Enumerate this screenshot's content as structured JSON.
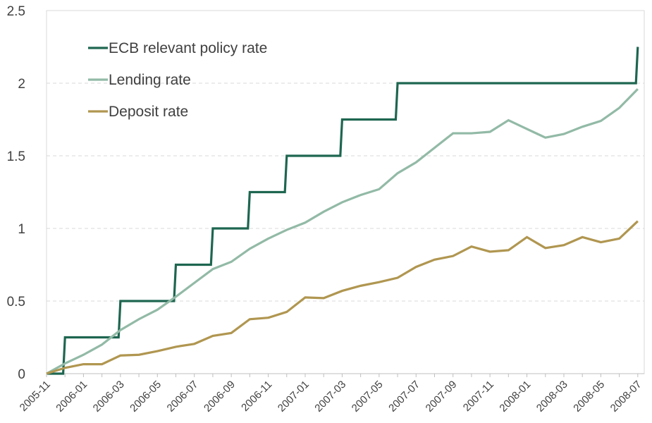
{
  "chart_data": {
    "type": "line",
    "title": "",
    "xlabel": "",
    "ylabel": "",
    "ylim": [
      0,
      2.5
    ],
    "yticks": [
      "0",
      "0.5",
      "1",
      "1.5",
      "2",
      "2.5"
    ],
    "ytick_values": [
      0,
      0.5,
      1,
      1.5,
      2,
      2.5
    ],
    "grid": "horizontal dashed",
    "legend_position": "top-left",
    "x": [
      "2005-11",
      "2005-12",
      "2006-01",
      "2006-02",
      "2006-03",
      "2006-04",
      "2006-05",
      "2006-06",
      "2006-07",
      "2006-08",
      "2006-09",
      "2006-10",
      "2006-11",
      "2006-12",
      "2007-01",
      "2007-02",
      "2007-03",
      "2007-04",
      "2007-05",
      "2007-06",
      "2007-07",
      "2007-08",
      "2007-09",
      "2007-10",
      "2007-11",
      "2007-12",
      "2008-01",
      "2008-02",
      "2008-03",
      "2008-04",
      "2008-05",
      "2008-06",
      "2008-07"
    ],
    "xtick_labels": [
      "2005-11",
      "2006-01",
      "2006-03",
      "2006-05",
      "2006-07",
      "2006-09",
      "2006-11",
      "2007-01",
      "2007-03",
      "2007-05",
      "2007-07",
      "2007-09",
      "2007-11",
      "2008-01",
      "2008-03",
      "2008-05",
      "2008-07"
    ],
    "series": [
      {
        "name": "ECB relevant policy rate",
        "color": "#1e6650",
        "step": true,
        "values": [
          0,
          0.25,
          0.25,
          0.25,
          0.5,
          0.5,
          0.5,
          0.75,
          0.75,
          1.0,
          1.0,
          1.25,
          1.25,
          1.5,
          1.5,
          1.5,
          1.75,
          1.75,
          1.75,
          2.0,
          2.0,
          2.0,
          2.0,
          2.0,
          2.0,
          2.0,
          2.0,
          2.0,
          2.0,
          2.0,
          2.0,
          2.0,
          2.25
        ]
      },
      {
        "name": "Lending rate",
        "color": "#92baa6",
        "values": [
          0,
          0.07,
          0.13,
          0.2,
          0.3,
          0.375,
          0.44,
          0.53,
          0.625,
          0.72,
          0.77,
          0.86,
          0.93,
          0.99,
          1.04,
          1.115,
          1.18,
          1.23,
          1.27,
          1.38,
          1.455,
          1.555,
          1.655,
          1.655,
          1.665,
          1.745,
          1.685,
          1.625,
          1.65,
          1.7,
          1.74,
          1.83,
          1.96
        ]
      },
      {
        "name": "Deposit rate",
        "color": "#b09650",
        "values": [
          0,
          0.04,
          0.065,
          0.065,
          0.125,
          0.13,
          0.155,
          0.185,
          0.205,
          0.26,
          0.28,
          0.375,
          0.385,
          0.425,
          0.525,
          0.52,
          0.57,
          0.605,
          0.63,
          0.66,
          0.735,
          0.785,
          0.81,
          0.875,
          0.84,
          0.85,
          0.94,
          0.865,
          0.885,
          0.94,
          0.905,
          0.93,
          1.05
        ]
      }
    ]
  }
}
